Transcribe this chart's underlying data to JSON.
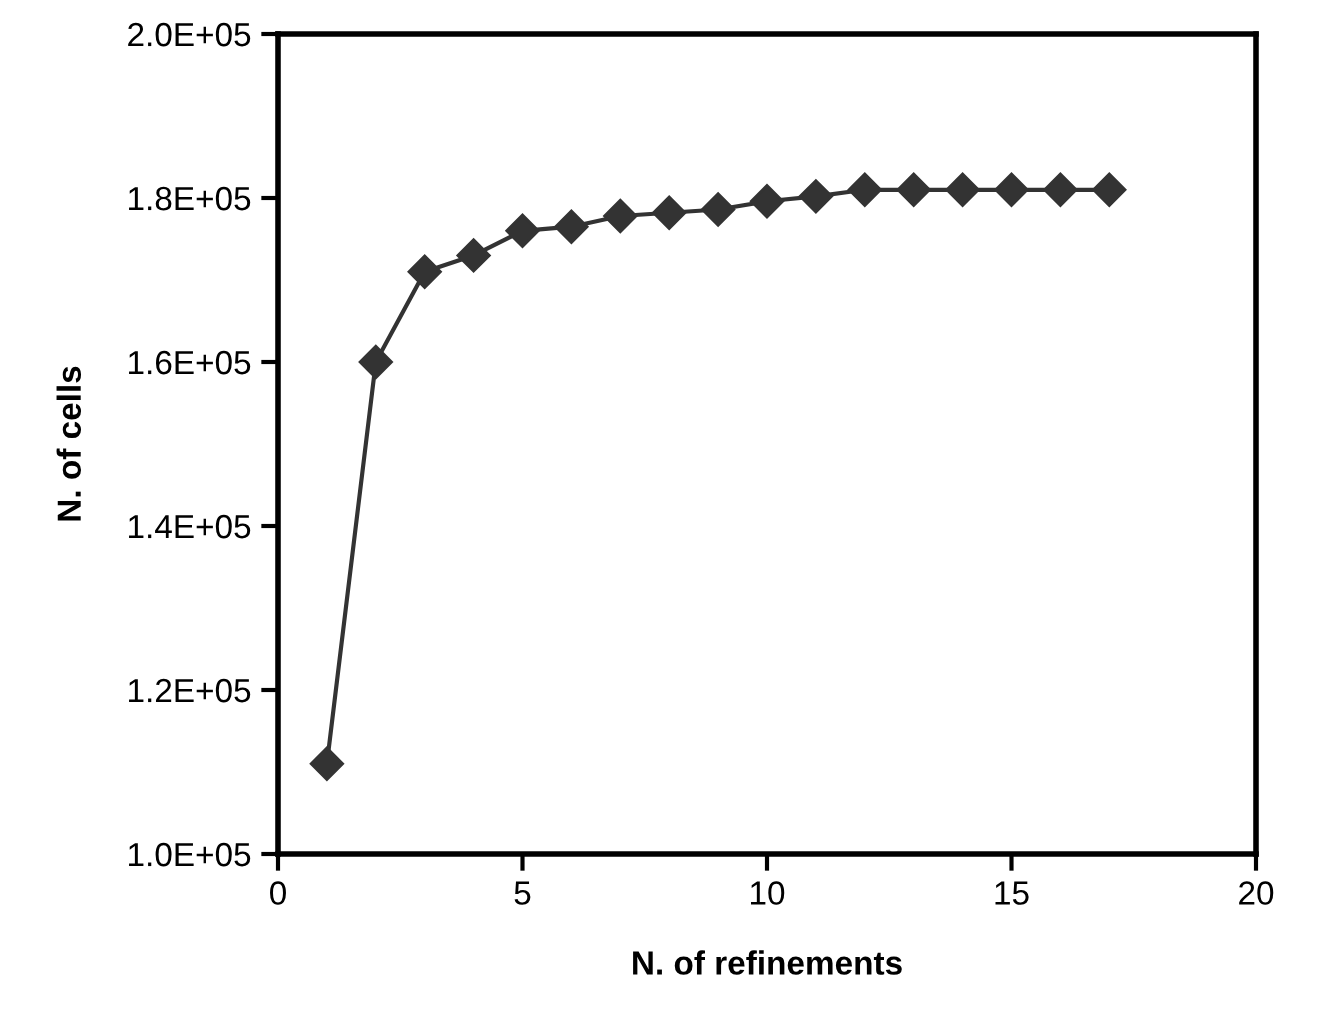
{
  "chart_data": {
    "type": "line",
    "xlabel": "N. of refinements",
    "ylabel": "N. of cells",
    "x": [
      1,
      2,
      3,
      4,
      5,
      6,
      7,
      8,
      9,
      10,
      11,
      12,
      13,
      14,
      15,
      16,
      17
    ],
    "series": [
      {
        "color": "#333333",
        "values": [
          111000,
          160000,
          171000,
          173000,
          176000,
          176500,
          177800,
          178200,
          178600,
          179600,
          180200,
          181000,
          181000,
          181000,
          181000,
          181000,
          181000
        ]
      }
    ],
    "xlim": [
      0,
      20
    ],
    "xticks": [
      0,
      5,
      10,
      15,
      20
    ],
    "ylim": [
      100000,
      200000
    ],
    "yticks": [
      {
        "value": 100000,
        "label": "1.0E+05"
      },
      {
        "value": 120000,
        "label": "1.2E+05"
      },
      {
        "value": 140000,
        "label": "1.4E+05"
      },
      {
        "value": 160000,
        "label": "1.6E+05"
      },
      {
        "value": 180000,
        "label": "1.8E+05"
      },
      {
        "value": 200000,
        "label": "2.0E+05"
      }
    ],
    "marker": "diamond",
    "line_style": "solid",
    "grid": false,
    "legend": false
  }
}
